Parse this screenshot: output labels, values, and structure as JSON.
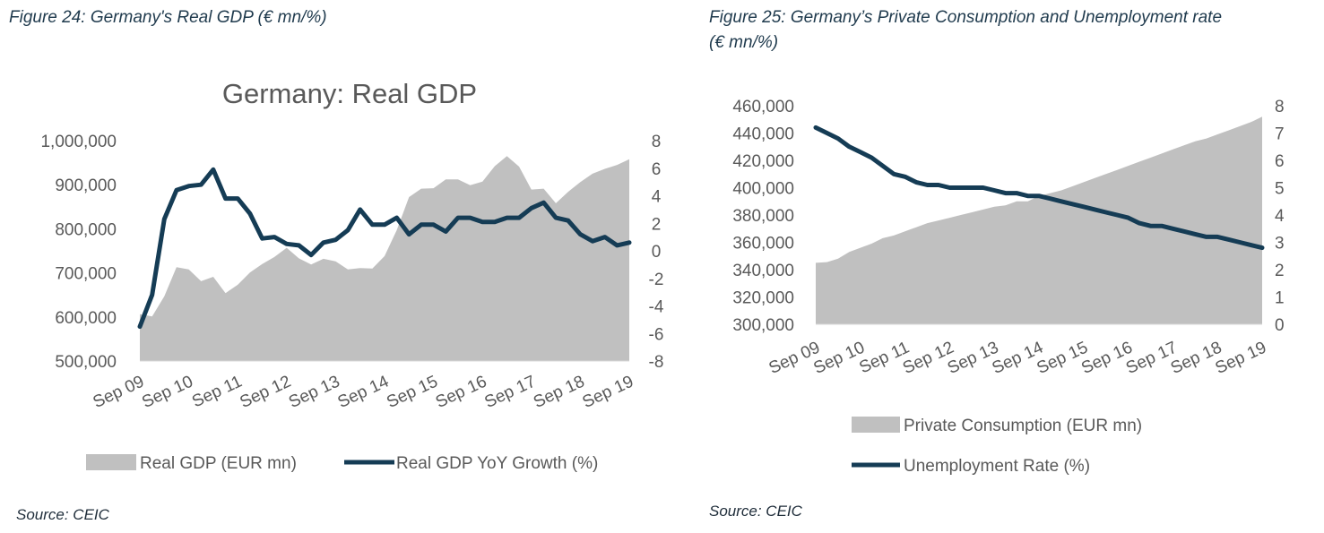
{
  "left_figure": {
    "caption": "Figure 24: Germany's Real GDP (€ mn/%)",
    "source": "Source: CEIC"
  },
  "right_figure": {
    "caption_line1": "Figure 25: Germany’s Private Consumption and Unemployment rate",
    "caption_line2": "(€ mn/%)",
    "source": "Source: CEIC"
  },
  "colors": {
    "area": "#c0c0c0",
    "line": "#153c55",
    "text": "#595959"
  },
  "chart_data": [
    {
      "type": "area+line",
      "title": "Germany: Real GDP",
      "x_tick_labels": [
        "Sep 09",
        "Sep 10",
        "Sep 11",
        "Sep 12",
        "Sep 13",
        "Sep 14",
        "Sep 15",
        "Sep 16",
        "Sep 17",
        "Sep 18",
        "Sep 19"
      ],
      "y_left_ticks": [
        "500,000",
        "600,000",
        "700,000",
        "800,000",
        "900,000",
        "1,000,000"
      ],
      "y_left_range": [
        500000,
        1000000
      ],
      "y_right_ticks": [
        "-8",
        "-6",
        "-4",
        "-2",
        "0",
        "2",
        "4",
        "6",
        "8"
      ],
      "y_right_range": [
        -8,
        8
      ],
      "legend": [
        "Real GDP (EUR mn)",
        "Real GDP YoY Growth (%)"
      ],
      "series": [
        {
          "name": "Real GDP (EUR mn)",
          "kind": "area",
          "axis": "left",
          "values": [
            606000,
            601000,
            647000,
            713000,
            708000,
            681000,
            691000,
            654000,
            673000,
            701000,
            720000,
            736000,
            757000,
            733000,
            719000,
            732000,
            726000,
            708000,
            711000,
            710000,
            738000,
            797000,
            872000,
            891000,
            892000,
            912000,
            912000,
            899000,
            907000,
            942000,
            965000,
            941000,
            889000,
            891000,
            858000,
            884000,
            906000,
            925000,
            936000,
            945000,
            958000
          ]
        },
        {
          "name": "Real GDP YoY Growth (%)",
          "kind": "line",
          "axis": "right",
          "values": [
            -5.5,
            -3.2,
            2.3,
            4.4,
            4.7,
            4.8,
            5.9,
            3.8,
            3.8,
            2.7,
            0.9,
            1.0,
            0.5,
            0.4,
            -0.3,
            0.6,
            0.8,
            1.5,
            3.0,
            1.9,
            1.9,
            2.4,
            1.2,
            1.9,
            1.9,
            1.4,
            2.4,
            2.4,
            2.1,
            2.1,
            2.4,
            2.4,
            3.1,
            3.5,
            2.4,
            2.2,
            1.2,
            0.7,
            1.0,
            0.4,
            0.6
          ]
        }
      ]
    },
    {
      "type": "area+line",
      "title": "",
      "x_tick_labels": [
        "Sep 09",
        "Sep 10",
        "Sep 11",
        "Sep 12",
        "Sep 13",
        "Sep 14",
        "Sep 15",
        "Sep 16",
        "Sep 17",
        "Sep 18",
        "Sep 19"
      ],
      "y_left_ticks": [
        "300,000",
        "320,000",
        "340,000",
        "360,000",
        "380,000",
        "400,000",
        "420,000",
        "440,000",
        "460,000"
      ],
      "y_left_range": [
        300000,
        460000
      ],
      "y_right_ticks": [
        "0",
        "1",
        "2",
        "3",
        "4",
        "5",
        "6",
        "7",
        "8"
      ],
      "y_right_range": [
        0,
        8
      ],
      "legend": [
        "Private Consumption (EUR mn)",
        "Unemployment Rate (%)"
      ],
      "series": [
        {
          "name": "Private Consumption (EUR mn)",
          "kind": "area",
          "axis": "left",
          "values": [
            345000,
            345500,
            348000,
            353000,
            356000,
            359000,
            363000,
            365000,
            368000,
            371000,
            374000,
            376000,
            378000,
            380000,
            382000,
            384000,
            386000,
            387000,
            390000,
            390000,
            394000,
            396000,
            398000,
            401000,
            404000,
            407000,
            410000,
            413000,
            416000,
            419000,
            422000,
            425000,
            428000,
            431000,
            434000,
            436000,
            439000,
            442000,
            445000,
            448000,
            452000
          ]
        },
        {
          "name": "Unemployment Rate (%)",
          "kind": "line",
          "axis": "right",
          "values": [
            7.2,
            7.0,
            6.8,
            6.5,
            6.3,
            6.1,
            5.8,
            5.5,
            5.4,
            5.2,
            5.1,
            5.1,
            5.0,
            5.0,
            5.0,
            5.0,
            4.9,
            4.8,
            4.8,
            4.7,
            4.7,
            4.6,
            4.5,
            4.4,
            4.3,
            4.2,
            4.1,
            4.0,
            3.9,
            3.7,
            3.6,
            3.6,
            3.5,
            3.4,
            3.3,
            3.2,
            3.2,
            3.1,
            3.0,
            2.9,
            2.8
          ]
        }
      ]
    }
  ]
}
